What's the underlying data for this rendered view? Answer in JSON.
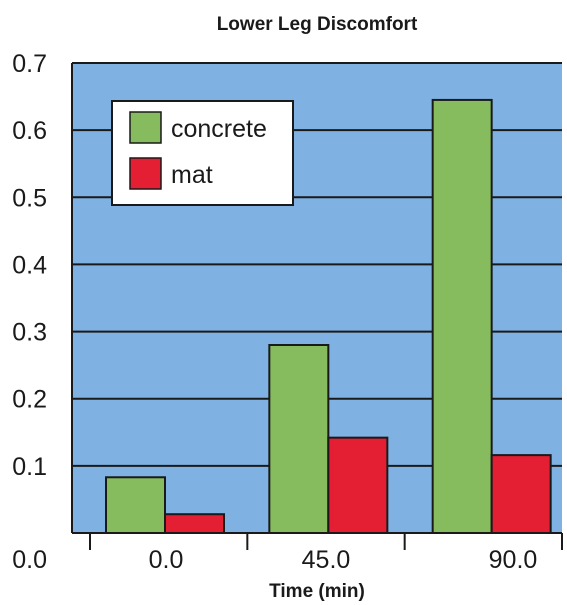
{
  "chart_data": {
    "type": "bar",
    "title": "Lower Leg Discomfort",
    "xlabel": "Time (min)",
    "ylabel": "",
    "categories": [
      "0.0",
      "45.0",
      "90.0"
    ],
    "series": [
      {
        "name": "concrete",
        "values": [
          0.083,
          0.28,
          0.645
        ],
        "color": "#86bb5e"
      },
      {
        "name": "mat",
        "values": [
          0.028,
          0.142,
          0.116
        ],
        "color": "#e41e33"
      }
    ],
    "ylim": [
      0,
      0.7
    ],
    "yticks": [
      "0.0",
      "0.1",
      "0.2",
      "0.3",
      "0.4",
      "0.5",
      "0.6",
      "0.7"
    ],
    "grid": true,
    "legend": "top-left",
    "colors": {
      "plot_background": "#7fb2e2",
      "gridline": "#1a1a1a",
      "axis": "#1a1a1a"
    }
  }
}
